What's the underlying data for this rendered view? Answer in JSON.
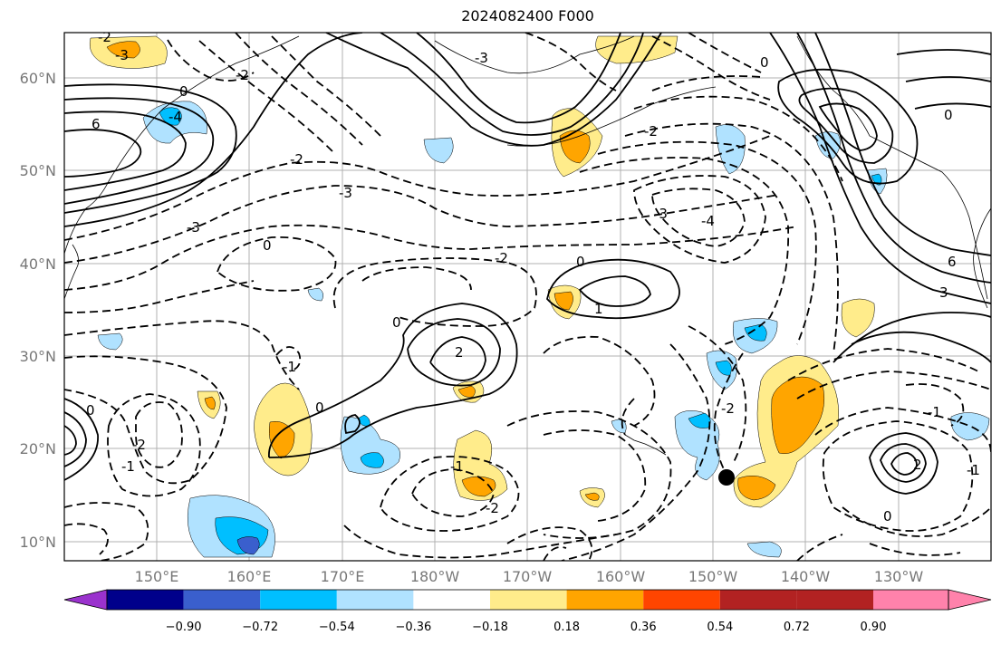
{
  "title": "2024082400 F000",
  "map": {
    "lon_range_label": "140°E to 120°W",
    "lat_ticks": [
      "60°N",
      "50°N",
      "40°N",
      "30°N",
      "20°N",
      "10°N"
    ],
    "lon_ticks": [
      "150°E",
      "160°E",
      "170°E",
      "180°W",
      "170°W",
      "160°W",
      "150°W",
      "140°W",
      "130°W"
    ]
  },
  "colorbar": {
    "labels": [
      "−0.90",
      "−0.72",
      "−0.54",
      "−0.36",
      "−0.18",
      "0.18",
      "0.36",
      "0.54",
      "0.72",
      "0.90"
    ],
    "colors": [
      "#9a32cd",
      "#00008b",
      "#3a5fcd",
      "#00bfff",
      "#b0e2ff",
      "#ffffff",
      "#ffec8b",
      "#ffa500",
      "#ff4500",
      "#b22222",
      "#ff82ab"
    ]
  },
  "contour_labels": [
    "-2",
    "-3",
    "-3",
    "-2",
    "0",
    "-4",
    "6",
    "-2",
    "-3",
    "-3",
    "0",
    "0",
    "-1",
    "0",
    "0",
    "2",
    "-2",
    "-1",
    "-2",
    "-1",
    "-3",
    "-4",
    "0",
    "1",
    "-2",
    "0",
    "0",
    "-2",
    "-2",
    "3",
    "6",
    "-1",
    "2",
    "-1",
    "0"
  ],
  "marker": {
    "type": "storm-center",
    "color": "#000000"
  }
}
